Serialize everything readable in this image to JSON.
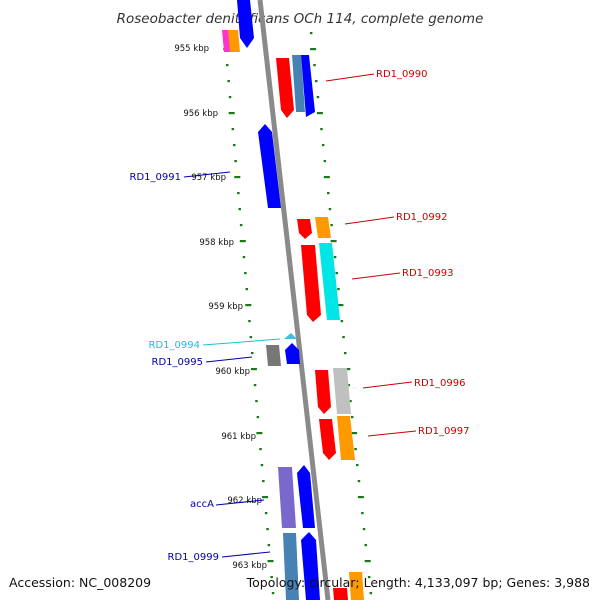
{
  "title": "Roseobacter denitrificans OCh 114, complete genome",
  "accession": "Accession: NC_008209",
  "topology": "Topology: circular; Length: 4,133,097 bp; Genes: 3,988",
  "kbp_marks": [
    "955 kbp",
    "956 kbp",
    "957 kbp",
    "958 kbp",
    "959 kbp",
    "960 kbp",
    "961 kbp",
    "962 kbp",
    "963 kbp"
  ],
  "gene_labels": [
    {
      "name": "RD1_0990",
      "color": "#cc0000"
    },
    {
      "name": "RD1_0991",
      "color": "#0000aa"
    },
    {
      "name": "RD1_0992",
      "color": "#cc0000"
    },
    {
      "name": "RD1_0993",
      "color": "#cc0000"
    },
    {
      "name": "RD1_0994",
      "color": "#22bbdd"
    },
    {
      "name": "RD1_0995",
      "color": "#0000aa"
    },
    {
      "name": "RD1_0996",
      "color": "#cc0000"
    },
    {
      "name": "RD1_0997",
      "color": "#cc0000"
    },
    {
      "name": "accA",
      "color": "#0000aa"
    },
    {
      "name": "RD1_0999",
      "color": "#0000aa"
    }
  ],
  "colors": {
    "backbone": "#8a8a8a",
    "dots": "#1a7a1a",
    "red": "#ff0000",
    "blue": "#0000ff",
    "orange": "#ff9900",
    "cyan": "#00e6e6",
    "gray": "#777777",
    "lightgray": "#c0c0c0",
    "slate": "#4682b4",
    "purple": "#7b68cc",
    "magenta": "#ff33cc"
  }
}
